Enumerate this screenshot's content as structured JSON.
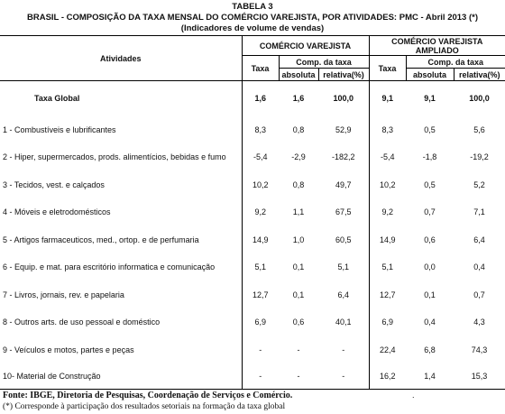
{
  "header": {
    "table_no": "TABELA 3",
    "title": "BRASIL - COMPOSIÇÃO DA TAXA MENSAL DO COMÉRCIO VAREJISTA, POR ATIVIDADES: PMC - Abril 2013 (*)",
    "subtitle": "(Indicadores de volume de vendas)"
  },
  "columns": {
    "atividades": "Atividades",
    "group1": "COMÉRCIO VAREJISTA",
    "group2": "COMÉRCIO VAREJISTA AMPLIADO",
    "taxa": "Taxa",
    "comp": "Comp. da taxa",
    "absoluta": "absoluta",
    "relativa": "relativa(%)"
  },
  "rows": [
    {
      "label": "Taxa Global",
      "v": [
        "1,6",
        "1,6",
        "100,0",
        "9,1",
        "9,1",
        "100,0"
      ]
    },
    {
      "label": "1 - Combustíveis e lubrificantes",
      "v": [
        "8,3",
        "0,8",
        "52,9",
        "8,3",
        "0,5",
        "5,6"
      ]
    },
    {
      "label": "2 - Hiper, supermercados, prods.  alimentícios, bebidas e fumo",
      "v": [
        "-5,4",
        "-2,9",
        "-182,2",
        "-5,4",
        "-1,8",
        "-19,2"
      ]
    },
    {
      "label": "3 - Tecidos, vest. e calçados",
      "v": [
        "10,2",
        "0,8",
        "49,7",
        "10,2",
        "0,5",
        "5,2"
      ]
    },
    {
      "label": "4 - Móveis e eletrodomésticos",
      "v": [
        "9,2",
        "1,1",
        "67,5",
        "9,2",
        "0,7",
        "7,1"
      ]
    },
    {
      "label": "5 - Artigos farmaceuticos, med., ortop. e de perfumaria",
      "v": [
        "14,9",
        "1,0",
        "60,5",
        "14,9",
        "0,6",
        "6,4"
      ]
    },
    {
      "label": "6 - Equip. e mat. para escritório informatica e comunicação",
      "v": [
        "5,1",
        "0,1",
        "5,1",
        "5,1",
        "0,0",
        "0,4"
      ]
    },
    {
      "label": "7 - Livros, jornais, rev. e papelaria",
      "v": [
        "12,7",
        "0,1",
        "6,4",
        "12,7",
        "0,1",
        "0,7"
      ]
    },
    {
      "label": "8 - Outros arts. de uso pessoal e doméstico",
      "v": [
        "6,9",
        "0,6",
        "40,1",
        "6,9",
        "0,4",
        "4,3"
      ]
    },
    {
      "label": "9 - Veículos e motos, partes e peças",
      "v": [
        "-",
        "-",
        "-",
        "22,4",
        "6,8",
        "74,3"
      ]
    },
    {
      "label": "10- Material de Construção",
      "v": [
        "-",
        "-",
        "-",
        "16,2",
        "1,4",
        "15,3"
      ]
    }
  ],
  "footer": {
    "source": "Fonte: IBGE, Diretoria de Pesquisas, Coordenação de Serviços e Comércio.",
    "note": "(*) Corresponde à participação dos resultados setoriais na formação da taxa global",
    "dot": "."
  }
}
